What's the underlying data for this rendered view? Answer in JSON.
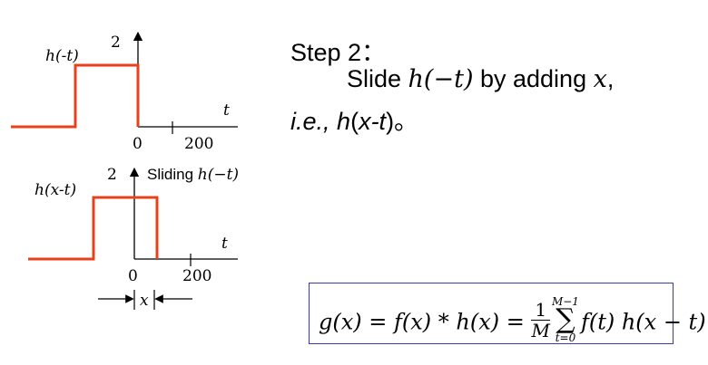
{
  "top_plot": {
    "function_label": "h(-t)",
    "y_tick": "2",
    "x_axis_var": "t",
    "origin_label": "0",
    "x_tick": "200"
  },
  "bottom_plot": {
    "function_label": "h(x-t)",
    "y_tick": "2",
    "annotation_prefix": "Sliding ",
    "annotation_math": "h(−t)",
    "x_axis_var": "t",
    "origin_label": "0",
    "x_tick": "200",
    "shift_label": "x"
  },
  "step": {
    "title": "Step 2：",
    "line2_word": "Slide ",
    "line2_math": "h(−t)",
    "line2_mid": " by adding ",
    "line2_var": "x",
    "line2_end": ",",
    "line3_ie": "i.e., ",
    "line3_fn": "h",
    "line3_open": "(",
    "line3_arg": "x-t",
    "line3_close": ")。"
  },
  "formula": {
    "lhs": "g(x) = f(x) * h(x) = ",
    "frac_num": "1",
    "frac_den": "M",
    "sum_upper": "M−1",
    "sum_symbol": "∑",
    "sum_lower": "t=0",
    "rhs": "f(t) h(x − t)"
  },
  "colors": {
    "signal": "#e8401a",
    "axis": "#000000",
    "formula_border": "#3a3aa8"
  }
}
